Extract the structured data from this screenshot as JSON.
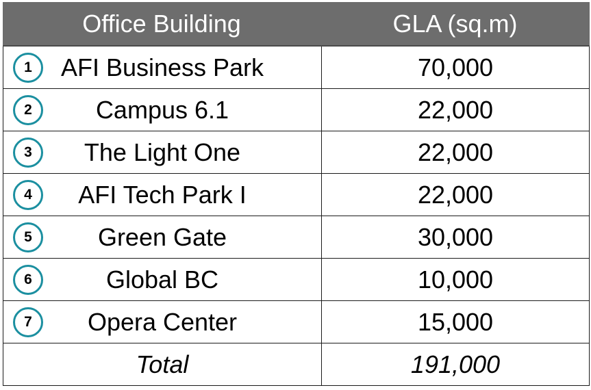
{
  "table": {
    "headers": {
      "building": "Office Building",
      "gla": "GLA (sq.m)"
    },
    "rows": [
      {
        "num": "1",
        "name": "AFI Business Park",
        "gla": "70,000"
      },
      {
        "num": "2",
        "name": "Campus 6.1",
        "gla": "22,000"
      },
      {
        "num": "3",
        "name": "The Light One",
        "gla": "22,000"
      },
      {
        "num": "4",
        "name": "AFI Tech Park I",
        "gla": "22,000"
      },
      {
        "num": "5",
        "name": "Green Gate",
        "gla": "30,000"
      },
      {
        "num": "6",
        "name": "Global BC",
        "gla": "10,000"
      },
      {
        "num": "7",
        "name": "Opera Center",
        "gla": "15,000"
      }
    ],
    "total": {
      "label": "Total",
      "gla": "191,000"
    }
  },
  "colors": {
    "header_bg": "#6d6d6d",
    "badge_ring": "#1b8fa0"
  }
}
